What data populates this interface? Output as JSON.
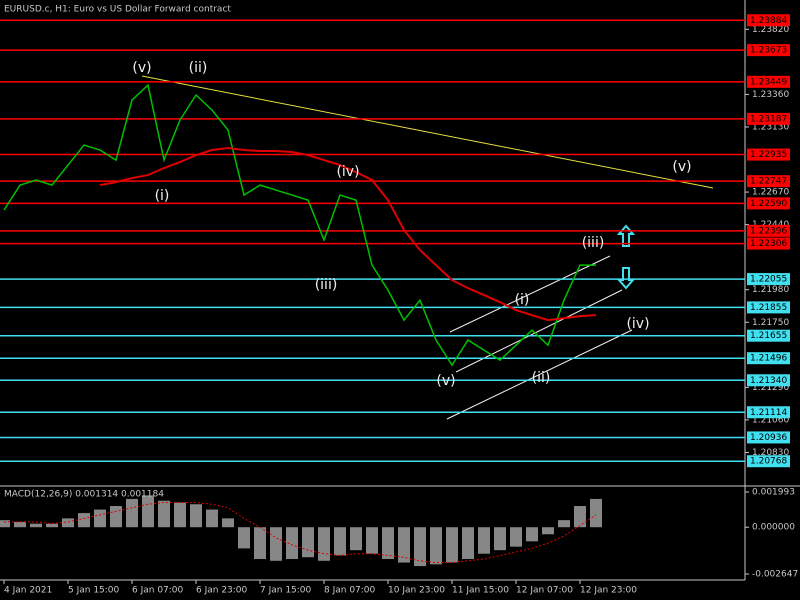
{
  "chart_data": [
    {
      "type": "line",
      "title": "EURUSD.c, H1:  Euro vs US Dollar Forward contract",
      "categories": [
        "4 Jan 2021",
        null,
        null,
        null,
        "5 Jan 15:00",
        null,
        null,
        null,
        "6 Jan 07:00",
        null,
        null,
        null,
        "6 Jan 23:00",
        null,
        null,
        null,
        "7 Jan 15:00",
        null,
        null,
        null,
        "8 Jan 07:00",
        null,
        null,
        null,
        "10 Jan 23:00",
        null,
        null,
        null,
        "11 Jan 15:00",
        null,
        null,
        null,
        "12 Jan 07:00",
        null,
        null,
        null,
        "12 Jan 23:00",
        null
      ],
      "series": [
        {
          "color": "#00c000",
          "values": [
            1.22543,
            1.22719,
            1.22755,
            1.22719,
            1.22861,
            1.23002,
            1.22967,
            1.22896,
            1.2332,
            1.23426,
            1.22896,
            1.23179,
            1.23356,
            1.2325,
            1.23108,
            1.22649,
            1.22719,
            1.22684,
            1.22649,
            1.22613,
            1.22331,
            1.22649,
            1.22613,
            1.22154,
            1.21977,
            1.21765,
            1.21906,
            1.21624,
            1.21447,
            1.21624,
            1.21553,
            1.21482,
            1.21588,
            1.21694,
            1.21588,
            1.21906,
            1.22154,
            1.22154
          ]
        },
        {
          "color": "#e00000",
          "values": [
            null,
            null,
            null,
            null,
            null,
            null,
            1.22719,
            1.2274,
            1.22769,
            1.2279,
            1.2284,
            1.22882,
            1.22931,
            1.22967,
            1.22981,
            1.22967,
            1.2296,
            1.2296,
            1.22953,
            1.22931,
            1.22896,
            1.22861,
            1.22811,
            1.22755,
            1.22613,
            1.22401,
            1.2226,
            1.22154,
            1.22048,
            1.21991,
            1.21942,
            1.21892,
            1.21836,
            1.218,
            1.21765,
            1.21779,
            1.21793,
            1.218
          ]
        }
      ],
      "ylim": [
        1.206,
        1.239
      ],
      "yticks": [
        {
          "value": 1.2382,
          "label": "1.23820"
        },
        {
          "value": 1.2336,
          "label": "1.23360"
        },
        {
          "value": 1.2313,
          "label": "1.23130"
        },
        {
          "value": 1.2267,
          "label": "1.22670"
        },
        {
          "value": 1.2244,
          "label": "1.22440"
        },
        {
          "value": 1.2198,
          "label": "1.21980"
        },
        {
          "value": 1.2175,
          "label": "1.21750"
        },
        {
          "value": 1.2129,
          "label": "1.21290"
        },
        {
          "value": 1.2106,
          "label": "1.21060"
        },
        {
          "value": 1.2083,
          "label": "1.20830"
        }
      ],
      "levels": [
        {
          "value": 1.23884,
          "color": "#ff0000"
        },
        {
          "value": 1.23673,
          "color": "#ff0000"
        },
        {
          "value": 1.23449,
          "color": "#ff0000"
        },
        {
          "value": 1.23187,
          "color": "#ff0000"
        },
        {
          "value": 1.22935,
          "color": "#ff0000"
        },
        {
          "value": 1.22747,
          "color": "#ff0000"
        },
        {
          "value": 1.2259,
          "label": "1.22590",
          "color": "#ff0000"
        },
        {
          "value": 1.22396,
          "color": "#ff0000"
        },
        {
          "value": 1.22306,
          "color": "#ff0000"
        },
        {
          "value": 1.22055,
          "color": "#40e0f0"
        },
        {
          "value": 1.21855,
          "color": "#40e0f0"
        },
        {
          "value": 1.21655,
          "color": "#40e0f0"
        },
        {
          "value": 1.21496,
          "color": "#40e0f0"
        },
        {
          "value": 1.2134,
          "label": "1.21340",
          "color": "#40e0f0"
        },
        {
          "value": 1.21114,
          "color": "#40e0f0"
        },
        {
          "value": 1.20936,
          "color": "#40e0f0"
        },
        {
          "value": 1.20768,
          "color": "#40e0f0"
        }
      ],
      "annotations": [
        "(v)",
        "(ii)",
        "(i)",
        "(iv)",
        "(iii)",
        "(v)",
        "(i)",
        "(ii)",
        "(iii)",
        "(iv)",
        "(v)"
      ]
    },
    {
      "type": "bar",
      "title": "MACD(12,26,9) 0.001314 0.001184",
      "series": [
        {
          "color": "#c0c0c0",
          "values": [
            0.0004,
            0.0003,
            0.0002,
            0.0002,
            0.0005,
            0.0008,
            0.001,
            0.0012,
            0.0016,
            0.0018,
            0.0015,
            0.0014,
            0.0013,
            0.001,
            0.0005,
            -0.0012,
            -0.0018,
            -0.0019,
            -0.0018,
            -0.0017,
            -0.0019,
            -0.0016,
            -0.0013,
            -0.0015,
            -0.0018,
            -0.002,
            -0.0022,
            -0.0021,
            -0.002,
            -0.0018,
            -0.0015,
            -0.0013,
            -0.0011,
            -0.0008,
            -0.0004,
            0.0004,
            0.0012,
            0.0016
          ]
        },
        {
          "color": "#e00000",
          "values": [
            0.0003,
            0.0003,
            0.0003,
            0.0002,
            0.0003,
            0.0005,
            0.0007,
            0.0009,
            0.0011,
            0.0013,
            0.0014,
            0.0014,
            0.0014,
            0.0013,
            0.0011,
            0.0005,
            0.0,
            -0.0006,
            -0.001,
            -0.0013,
            -0.0015,
            -0.0016,
            -0.0015,
            -0.0015,
            -0.0016,
            -0.0017,
            -0.0019,
            -0.002,
            -0.002,
            -0.0019,
            -0.0018,
            -0.0016,
            -0.0014,
            -0.0012,
            -0.0009,
            -0.0005,
            0.0001,
            0.0007
          ]
        }
      ],
      "ylim": [
        -0.002987,
        0.002276
      ],
      "yticks": [
        0.001993,
        {
          "value": 0,
          "label": "0.000000"
        },
        -0.002647
      ]
    }
  ]
}
